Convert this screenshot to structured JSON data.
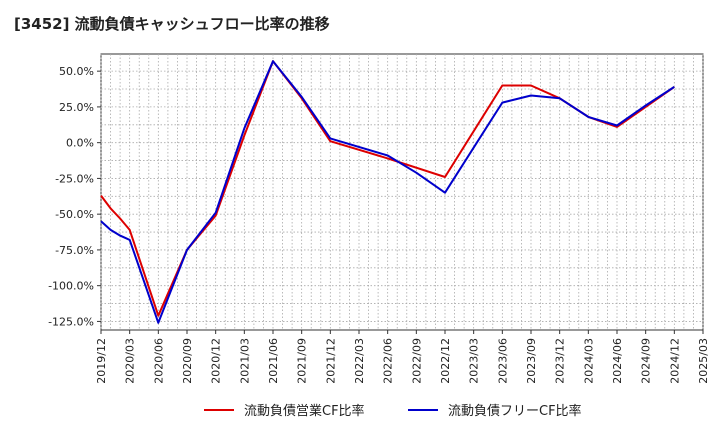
{
  "chart_data": {
    "type": "line",
    "title": "[3452]  流動負債キャッシュフロー比率の推移",
    "xlabel": "",
    "ylabel": "",
    "x_ticks": [
      "2019/12",
      "2020/03",
      "2020/06",
      "2020/09",
      "2020/12",
      "2021/03",
      "2021/06",
      "2021/09",
      "2021/12",
      "2022/03",
      "2022/06",
      "2022/09",
      "2022/12",
      "2023/03",
      "2023/06",
      "2023/09",
      "2023/12",
      "2024/03",
      "2024/06",
      "2024/09",
      "2024/12",
      "2025/03"
    ],
    "y_ticks": [
      "50.0%",
      "25.0%",
      "0.0%",
      "-25.0%",
      "-50.0%",
      "-75.0%",
      "-100.0%",
      "-125.0%"
    ],
    "y_tick_values": [
      50,
      25,
      0,
      -25,
      -50,
      -75,
      -100,
      -125
    ],
    "ylim": [
      -131,
      62
    ],
    "grid": true,
    "legend_position": "bottom",
    "series": [
      {
        "name": "流動負債営業CF比率",
        "color": "#dd0000",
        "x": [
          "2019/12",
          "2020/01",
          "2020/02",
          "2020/03",
          "2020/06",
          "2020/09",
          "2020/12",
          "2021/03",
          "2021/06",
          "2021/09",
          "2021/12",
          "2022/06",
          "2022/12",
          "2023/06",
          "2023/09",
          "2023/12",
          "2024/03",
          "2024/06",
          "2024/09",
          "2024/12"
        ],
        "values": [
          -37,
          -46,
          -53,
          -61,
          -121,
          -75,
          -51,
          5,
          57,
          31,
          1,
          -11,
          -24,
          40,
          40,
          31,
          18,
          11,
          25,
          39
        ]
      },
      {
        "name": "流動負債フリーCF比率",
        "color": "#0000cc",
        "x": [
          "2019/12",
          "2020/01",
          "2020/02",
          "2020/03",
          "2020/06",
          "2020/09",
          "2020/12",
          "2021/03",
          "2021/06",
          "2021/09",
          "2021/12",
          "2022/06",
          "2022/09",
          "2022/12",
          "2023/06",
          "2023/09",
          "2023/12",
          "2024/03",
          "2024/06",
          "2024/09",
          "2024/12"
        ],
        "values": [
          -55,
          -61,
          -65,
          -68,
          -126,
          -75,
          -49,
          10,
          57,
          32,
          3,
          -9,
          -21,
          -35,
          28,
          33,
          31,
          18,
          12,
          26,
          39
        ]
      }
    ]
  }
}
